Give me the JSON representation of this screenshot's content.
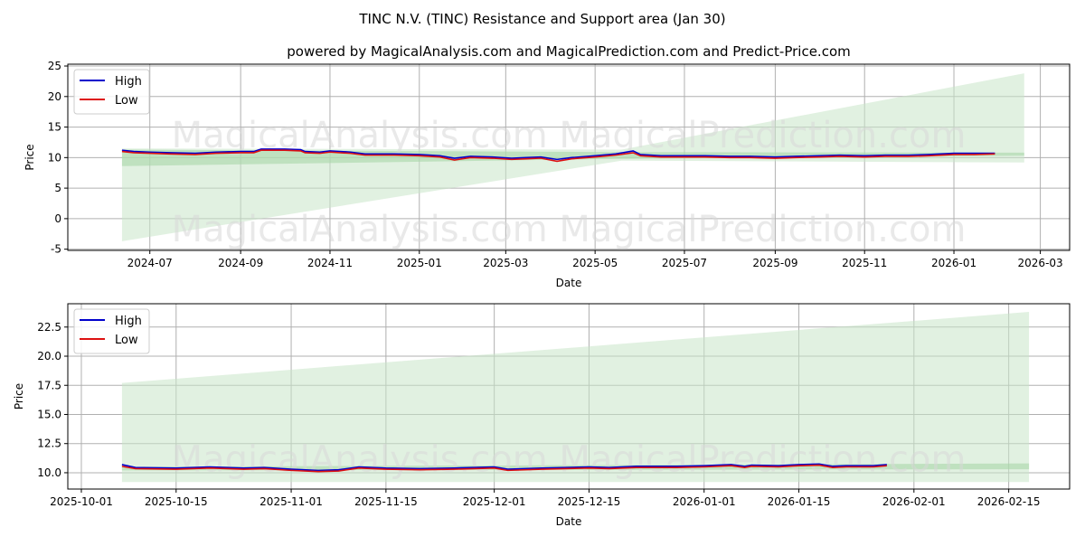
{
  "title": "TINC N.V. (TINC) Resistance and Support area (Jan 30)",
  "subtitle": "powered by MagicalAnalysis.com and MagicalPrediction.com and Predict-Price.com",
  "watermark": [
    "MagicalAnalysis.com",
    "MagicalPrediction.com"
  ],
  "colors": {
    "high": "#0000cc",
    "low": "#dd1111",
    "band": "#c8e6c8",
    "band_core": "#a9d7a9",
    "grid": "#b0b0b0"
  },
  "chart_data": [
    {
      "type": "line",
      "xlabel": "Date",
      "ylabel": "Price",
      "ylim": [
        -5.2,
        25.3
      ],
      "xlim": [
        "2024-05-06",
        "2026-03-21"
      ],
      "grid": true,
      "legend": "top-left",
      "legend_labels": [
        "High",
        "Low"
      ],
      "yticks": [
        -5,
        0,
        5,
        10,
        15,
        20,
        25
      ],
      "xticks": [
        "2024-07",
        "2024-09",
        "2024-11",
        "2025-01",
        "2025-03",
        "2025-05",
        "2025-07",
        "2025-09",
        "2025-11",
        "2026-01",
        "2026-03"
      ],
      "band_wide": [
        {
          "date": "2024-06-12",
          "lower": -3.7,
          "upper": 11.5
        },
        {
          "date": "2025-05-19",
          "lower": 9.5,
          "upper": 11.3
        },
        {
          "date": "2026-02-18",
          "lower": 9.2,
          "upper": 23.8
        }
      ],
      "band_core": [
        {
          "date": "2024-06-12",
          "lower": 8.6,
          "upper": 11.3
        },
        {
          "date": "2025-05-15",
          "lower": 9.8,
          "upper": 10.9
        },
        {
          "date": "2026-02-18",
          "lower": 10.3,
          "upper": 10.8
        }
      ],
      "dates": [
        "2024-06-12",
        "2024-06-20",
        "2024-07-01",
        "2024-07-15",
        "2024-08-01",
        "2024-08-15",
        "2024-09-01",
        "2024-09-10",
        "2024-09-15",
        "2024-10-01",
        "2024-10-12",
        "2024-10-15",
        "2024-10-25",
        "2024-11-01",
        "2024-11-15",
        "2024-11-25",
        "2024-12-15",
        "2025-01-01",
        "2025-01-15",
        "2025-01-25",
        "2025-02-05",
        "2025-02-20",
        "2025-03-05",
        "2025-03-15",
        "2025-03-25",
        "2025-04-05",
        "2025-04-15",
        "2025-05-01",
        "2025-05-15",
        "2025-05-27",
        "2025-06-01",
        "2025-06-15",
        "2025-07-01",
        "2025-07-15",
        "2025-08-01",
        "2025-08-15",
        "2025-09-01",
        "2025-09-15",
        "2025-10-01",
        "2025-10-15",
        "2025-11-01",
        "2025-11-15",
        "2025-12-01",
        "2025-12-15",
        "2026-01-01",
        "2026-01-15",
        "2026-01-29"
      ],
      "series": [
        {
          "name": "High",
          "values": [
            11.2,
            11.0,
            10.9,
            10.8,
            10.7,
            10.9,
            11.0,
            11.0,
            11.4,
            11.4,
            11.3,
            11.0,
            10.9,
            11.1,
            10.9,
            10.6,
            10.6,
            10.5,
            10.3,
            9.9,
            10.2,
            10.1,
            9.9,
            10.0,
            10.1,
            9.7,
            10.0,
            10.3,
            10.6,
            11.1,
            10.5,
            10.3,
            10.3,
            10.3,
            10.2,
            10.2,
            10.1,
            10.2,
            10.3,
            10.4,
            10.3,
            10.4,
            10.4,
            10.5,
            10.7,
            10.7,
            10.7
          ]
        },
        {
          "name": "Low",
          "values": [
            11.0,
            10.8,
            10.7,
            10.6,
            10.5,
            10.7,
            10.8,
            10.8,
            11.2,
            11.2,
            11.1,
            10.8,
            10.7,
            10.9,
            10.7,
            10.4,
            10.4,
            10.3,
            10.1,
            9.6,
            10.0,
            9.9,
            9.7,
            9.8,
            9.9,
            9.4,
            9.8,
            10.1,
            10.4,
            10.8,
            10.3,
            10.1,
            10.1,
            10.1,
            10.0,
            10.0,
            9.9,
            10.0,
            10.1,
            10.2,
            10.1,
            10.2,
            10.2,
            10.3,
            10.5,
            10.5,
            10.6
          ]
        }
      ]
    },
    {
      "type": "line",
      "xlabel": "Date",
      "ylabel": "Price",
      "ylim": [
        8.6,
        24.5
      ],
      "xlim": [
        "2025-09-29",
        "2026-02-24"
      ],
      "grid": true,
      "legend": "top-left",
      "legend_labels": [
        "High",
        "Low"
      ],
      "yticks": [
        10.0,
        12.5,
        15.0,
        17.5,
        20.0,
        22.5
      ],
      "ytick_labels": [
        "10.0",
        "12.5",
        "15.0",
        "17.5",
        "20.0",
        "22.5"
      ],
      "xticks": [
        "2025-10-01",
        "2025-10-15",
        "2025-11-01",
        "2025-11-15",
        "2025-12-01",
        "2025-12-15",
        "2026-01-01",
        "2026-01-15",
        "2026-02-01",
        "2026-02-15"
      ],
      "band_wide": [
        {
          "date": "2025-10-07",
          "lower": 9.2,
          "upper": 17.7
        },
        {
          "date": "2026-02-18",
          "lower": 9.2,
          "upper": 23.8
        }
      ],
      "band_core": [
        {
          "date": "2025-10-07",
          "lower": 10.2,
          "upper": 10.5
        },
        {
          "date": "2026-02-18",
          "lower": 10.3,
          "upper": 10.8
        }
      ],
      "dates": [
        "2025-10-07",
        "2025-10-09",
        "2025-10-15",
        "2025-10-20",
        "2025-10-25",
        "2025-10-28",
        "2025-11-01",
        "2025-11-05",
        "2025-11-08",
        "2025-11-11",
        "2025-11-15",
        "2025-11-20",
        "2025-11-25",
        "2025-12-01",
        "2025-12-03",
        "2025-12-08",
        "2025-12-15",
        "2025-12-18",
        "2025-12-22",
        "2025-12-28",
        "2026-01-01",
        "2026-01-05",
        "2026-01-07",
        "2026-01-08",
        "2026-01-12",
        "2026-01-15",
        "2026-01-18",
        "2026-01-20",
        "2026-01-22",
        "2026-01-26",
        "2026-01-28"
      ],
      "series": [
        {
          "name": "High",
          "values": [
            10.7,
            10.45,
            10.4,
            10.5,
            10.4,
            10.45,
            10.3,
            10.2,
            10.25,
            10.5,
            10.4,
            10.35,
            10.4,
            10.5,
            10.3,
            10.4,
            10.5,
            10.45,
            10.55,
            10.55,
            10.6,
            10.7,
            10.55,
            10.65,
            10.6,
            10.7,
            10.75,
            10.55,
            10.6,
            10.6,
            10.7
          ]
        },
        {
          "name": "Low",
          "values": [
            10.55,
            10.35,
            10.3,
            10.4,
            10.3,
            10.35,
            10.2,
            10.1,
            10.15,
            10.4,
            10.3,
            10.25,
            10.3,
            10.4,
            10.2,
            10.3,
            10.4,
            10.35,
            10.45,
            10.45,
            10.5,
            10.6,
            10.45,
            10.55,
            10.5,
            10.6,
            10.65,
            10.45,
            10.5,
            10.5,
            10.6
          ]
        }
      ]
    }
  ]
}
